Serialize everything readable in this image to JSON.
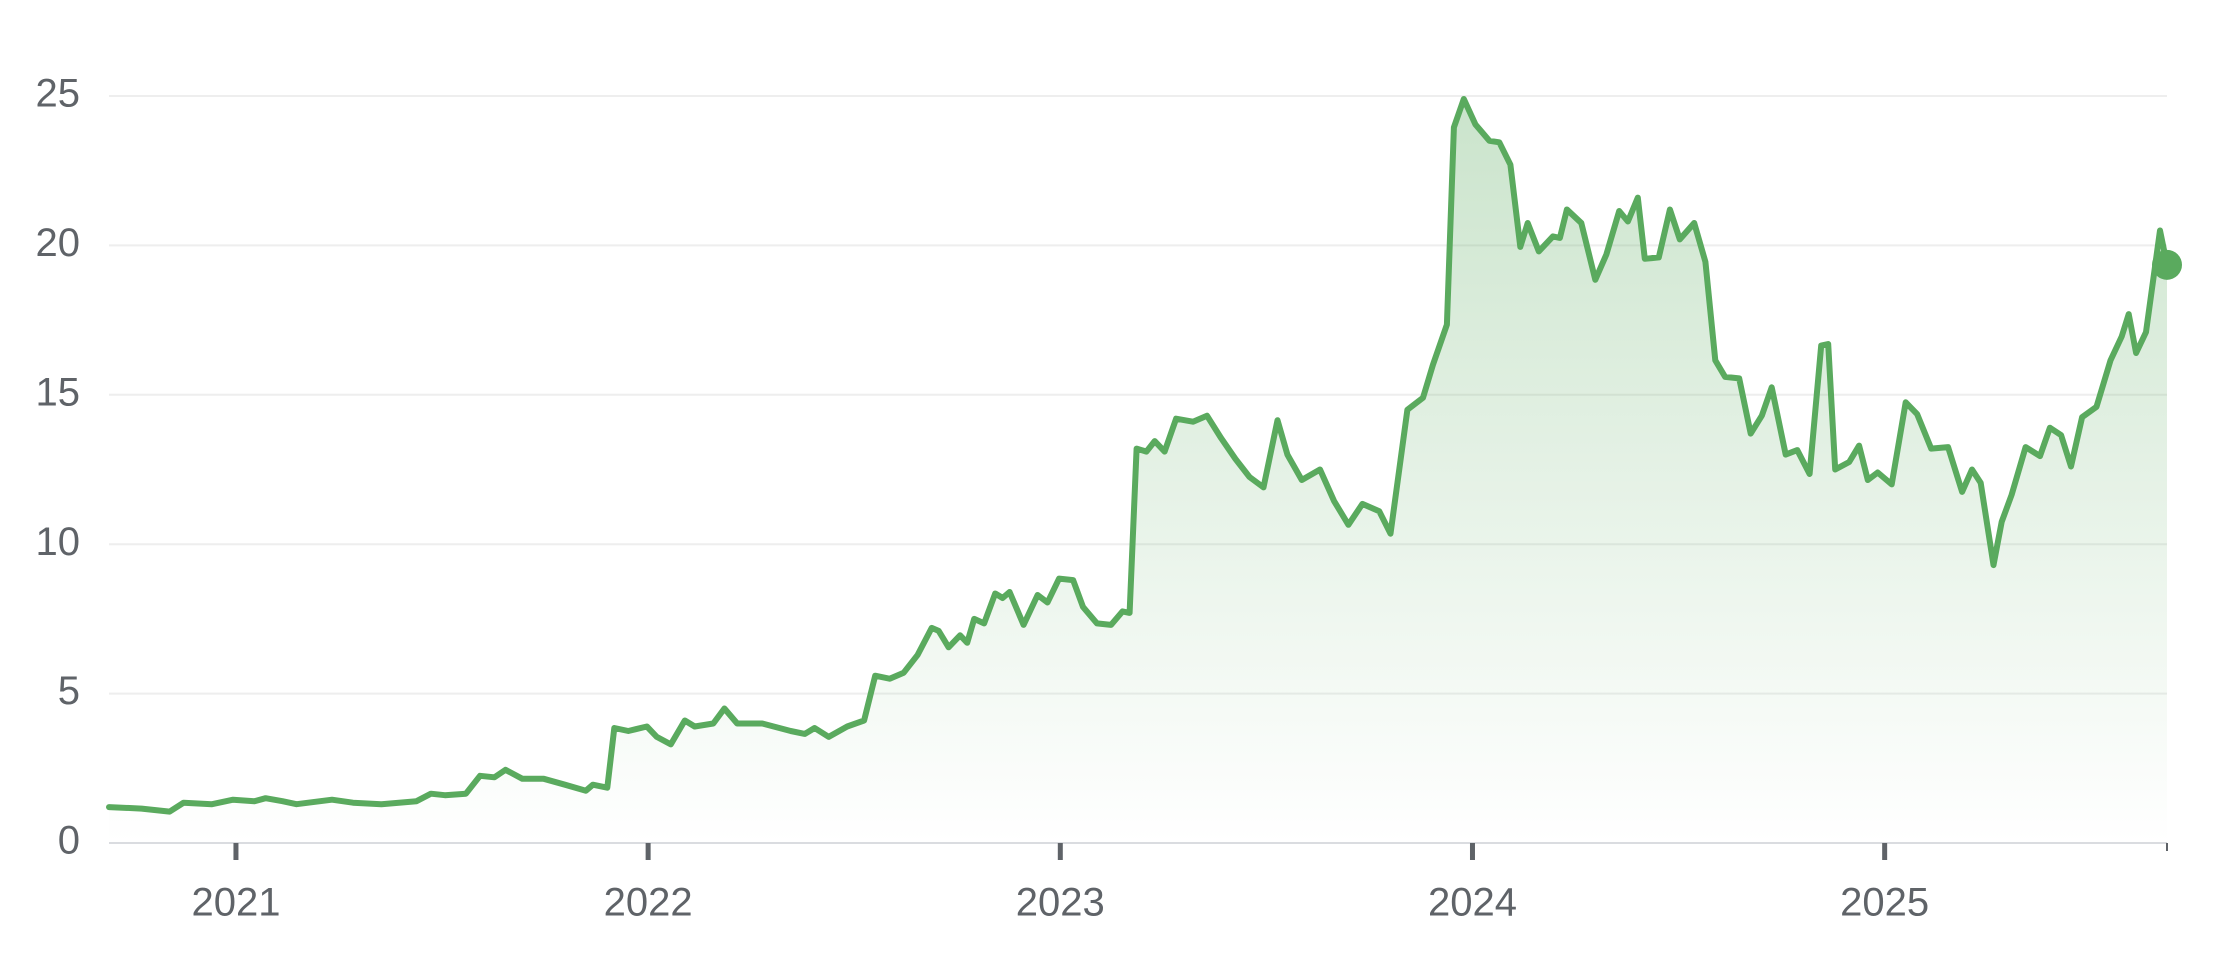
{
  "chart_data": {
    "type": "line",
    "color": "#5aaa5e",
    "grid": true,
    "x": [
      2020.692,
      2020.771,
      2020.839,
      2020.873,
      2020.942,
      2020.993,
      2021.045,
      2021.072,
      2021.113,
      2021.147,
      2021.233,
      2021.284,
      2021.353,
      2021.438,
      2021.473,
      2021.507,
      2021.558,
      2021.592,
      2021.627,
      2021.654,
      2021.695,
      2021.747,
      2021.798,
      2021.849,
      2021.866,
      2021.901,
      2021.918,
      2021.952,
      2021.997,
      2022.021,
      2022.055,
      2022.089,
      2022.113,
      2022.158,
      2022.185,
      2022.216,
      2022.277,
      2022.346,
      2022.38,
      2022.404,
      2022.438,
      2022.483,
      2022.524,
      2022.551,
      2022.586,
      2022.62,
      2022.654,
      2022.688,
      2022.705,
      2022.729,
      2022.757,
      2022.774,
      2022.791,
      2022.815,
      2022.842,
      2022.86,
      2022.877,
      2022.911,
      2022.945,
      2022.969,
      2022.997,
      2023.031,
      2023.055,
      2023.089,
      2023.123,
      2023.151,
      2023.168,
      2023.185,
      2023.209,
      2023.229,
      2023.253,
      2023.281,
      2023.322,
      2023.356,
      2023.39,
      2023.425,
      2023.459,
      2023.493,
      2023.527,
      2023.551,
      2023.586,
      2023.63,
      2023.664,
      2023.699,
      2023.733,
      2023.774,
      2023.801,
      2023.842,
      2023.88,
      2023.904,
      2023.938,
      2023.955,
      2023.979,
      2024.007,
      2024.041,
      2024.065,
      2024.092,
      2024.116,
      2024.134,
      2024.161,
      2024.195,
      2024.212,
      2024.229,
      2024.264,
      2024.298,
      2024.325,
      2024.356,
      2024.377,
      2024.401,
      2024.418,
      2024.452,
      2024.479,
      2024.503,
      2024.538,
      2024.565,
      2024.589,
      2024.613,
      2024.647,
      2024.675,
      2024.702,
      2024.726,
      2024.76,
      2024.788,
      2024.818,
      2024.846,
      2024.863,
      2024.88,
      2024.914,
      2024.938,
      2024.959,
      2024.983,
      2025.017,
      2025.051,
      2025.079,
      2025.113,
      2025.154,
      2025.188,
      2025.212,
      2025.233,
      2025.264,
      2025.284,
      2025.308,
      2025.342,
      2025.377,
      2025.401,
      2025.428,
      2025.452,
      2025.479,
      2025.514,
      2025.548,
      2025.575,
      2025.592,
      2025.61,
      2025.634,
      2025.668,
      2025.685
    ],
    "values": [
      1.2,
      1.15,
      1.05,
      1.35,
      1.3,
      1.45,
      1.4,
      1.5,
      1.4,
      1.3,
      1.45,
      1.35,
      1.3,
      1.4,
      1.65,
      1.6,
      1.65,
      2.25,
      2.2,
      2.45,
      2.15,
      2.15,
      1.95,
      1.75,
      1.95,
      1.85,
      3.85,
      3.75,
      3.9,
      3.55,
      3.3,
      4.1,
      3.9,
      4.0,
      4.5,
      4.0,
      4.0,
      3.75,
      3.65,
      3.85,
      3.55,
      3.9,
      4.1,
      5.6,
      5.5,
      5.7,
      6.3,
      7.2,
      7.1,
      6.55,
      6.95,
      6.7,
      7.5,
      7.35,
      8.35,
      8.2,
      8.4,
      7.3,
      8.3,
      8.05,
      8.85,
      8.8,
      7.9,
      7.35,
      7.3,
      7.75,
      7.7,
      13.2,
      13.1,
      13.45,
      13.1,
      14.2,
      14.1,
      14.3,
      13.55,
      12.85,
      12.25,
      11.9,
      14.15,
      13.0,
      12.15,
      12.5,
      11.45,
      10.65,
      11.35,
      11.1,
      10.35,
      14.5,
      14.9,
      16.0,
      17.35,
      23.95,
      24.9,
      24.05,
      23.5,
      23.45,
      22.7,
      19.95,
      20.75,
      19.8,
      20.3,
      20.25,
      21.2,
      20.75,
      18.85,
      19.7,
      21.15,
      20.8,
      21.6,
      19.55,
      19.6,
      21.2,
      20.2,
      20.75,
      19.45,
      16.15,
      15.6,
      15.55,
      13.7,
      14.3,
      15.25,
      13.0,
      13.15,
      12.35,
      16.65,
      16.7,
      12.5,
      12.75,
      13.3,
      12.15,
      12.4,
      12.0,
      14.75,
      14.35,
      13.2,
      13.25,
      11.75,
      12.5,
      12.05,
      9.3,
      10.75,
      11.65,
      13.25,
      12.95,
      13.9,
      13.65,
      12.6,
      14.25,
      14.6,
      16.15,
      16.95,
      17.7,
      16.4,
      17.1,
      20.5,
      19.35
    ],
    "xlim": [
      2020.692,
      2025.685
    ],
    "xticks": [
      2021,
      2022,
      2023,
      2024,
      2025
    ],
    "ylim": [
      0,
      25
    ],
    "yticks": [
      0,
      5,
      10,
      15,
      20,
      25
    ]
  }
}
